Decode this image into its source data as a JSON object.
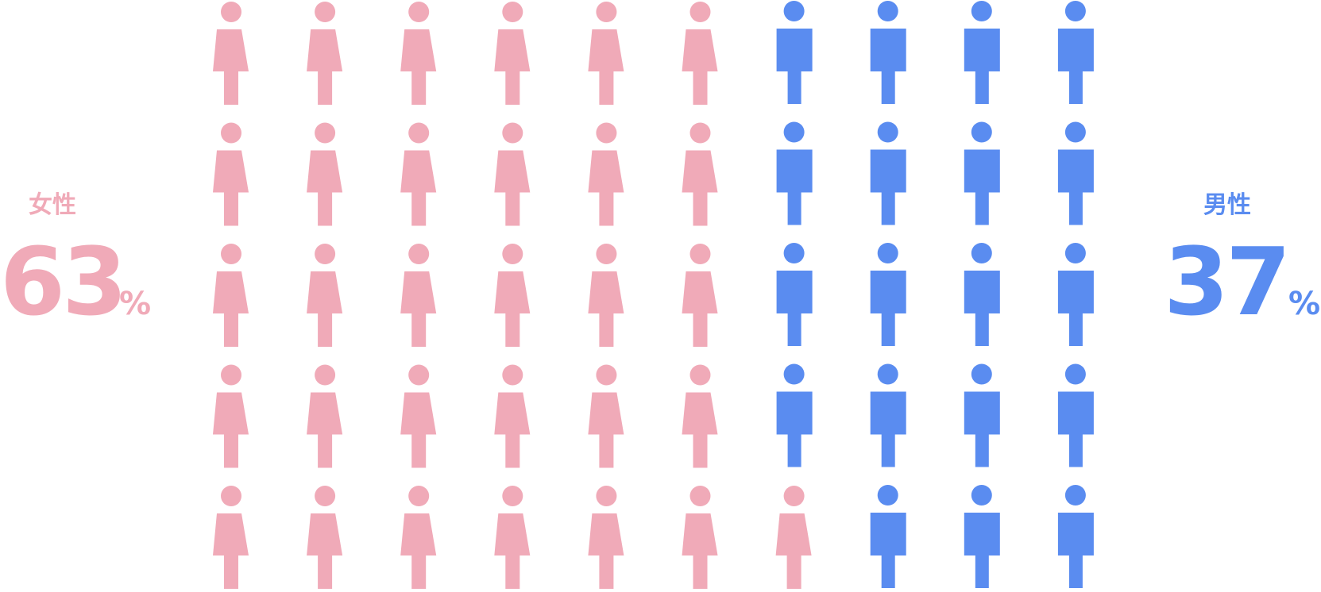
{
  "chart_data": {
    "type": "pictogram",
    "categories": [
      "女性",
      "男性"
    ],
    "values": [
      63,
      37
    ],
    "unit": "%",
    "icon_counts": [
      31,
      19
    ],
    "colors": [
      "#f0aab8",
      "#5a8cf0"
    ]
  }
}
